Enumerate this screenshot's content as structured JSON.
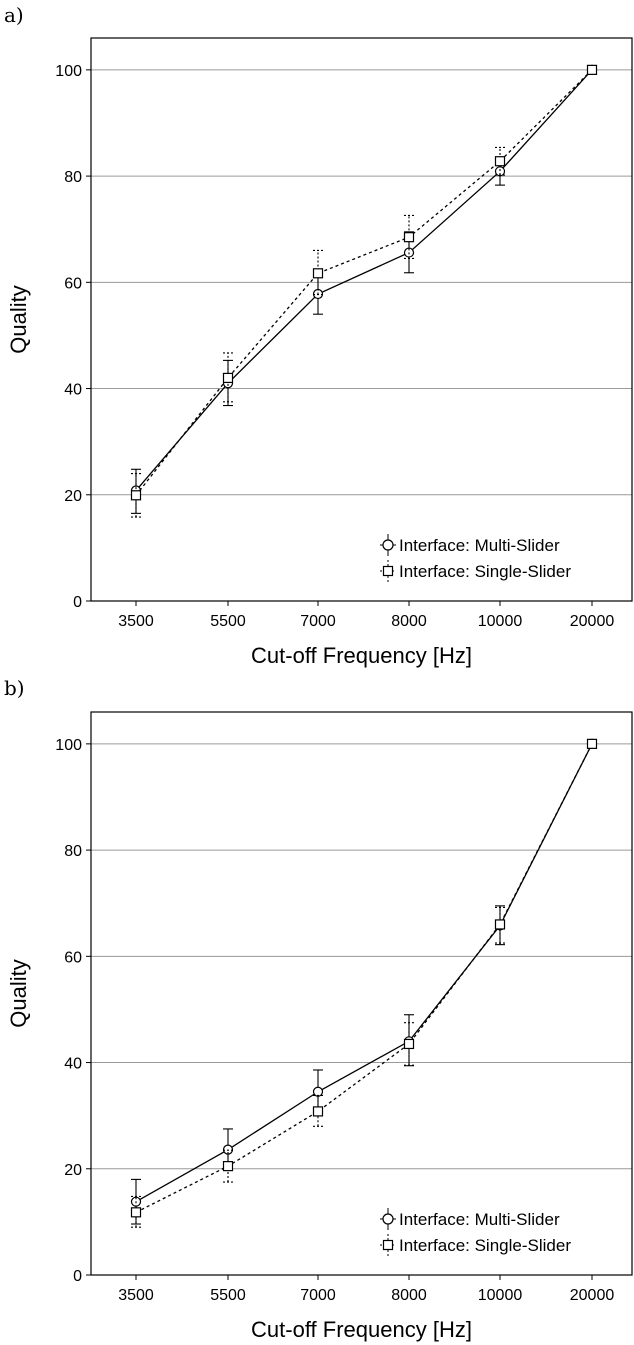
{
  "chart_data": [
    {
      "type": "line",
      "panel_label": "a)",
      "title": "",
      "xlabel": "Cut-off Frequency [Hz]",
      "ylabel": "Quality",
      "categories": [
        "3500",
        "5500",
        "7000",
        "8000",
        "10000",
        "20000"
      ],
      "ylim": [
        0,
        100
      ],
      "yticks": [
        "0",
        "20",
        "40",
        "60",
        "80",
        "100"
      ],
      "grid": "horizontal",
      "legend_position": "bottom-right",
      "series": [
        {
          "name": "Interface: Multi-Slider",
          "marker": "circle",
          "line": "solid",
          "values": [
            20.8,
            41.0,
            57.8,
            65.6,
            80.9,
            100
          ],
          "err_low": [
            16.5,
            36.8,
            54.0,
            61.8,
            78.3,
            100
          ],
          "err_high": [
            24.8,
            45.3,
            61.7,
            69.5,
            83.5,
            100
          ]
        },
        {
          "name": "Interface: Single-Slider",
          "marker": "square",
          "line": "dotted",
          "values": [
            19.9,
            42.0,
            61.7,
            68.5,
            82.8,
            100
          ],
          "err_low": [
            15.8,
            37.5,
            57.7,
            64.5,
            80.2,
            100
          ],
          "err_high": [
            24.0,
            46.7,
            66.0,
            72.6,
            85.4,
            100
          ]
        }
      ]
    },
    {
      "type": "line",
      "panel_label": "b)",
      "title": "",
      "xlabel": "Cut-off Frequency [Hz]",
      "ylabel": "Quality",
      "categories": [
        "3500",
        "5500",
        "7000",
        "8000",
        "10000",
        "20000"
      ],
      "ylim": [
        0,
        100
      ],
      "yticks": [
        "0",
        "20",
        "40",
        "60",
        "80",
        "100"
      ],
      "grid": "horizontal",
      "legend_position": "bottom-right",
      "series": [
        {
          "name": "Interface: Multi-Slider",
          "marker": "circle",
          "line": "solid",
          "values": [
            13.8,
            23.6,
            34.5,
            44.0,
            65.8,
            100
          ],
          "err_low": [
            9.6,
            19.7,
            30.5,
            39.4,
            62.2,
            100
          ],
          "err_high": [
            18.0,
            27.5,
            38.6,
            49.0,
            69.5,
            100
          ]
        },
        {
          "name": "Interface: Single-Slider",
          "marker": "square",
          "line": "dotted",
          "values": [
            11.8,
            20.5,
            30.8,
            43.5,
            66.0,
            100
          ],
          "err_low": [
            9.0,
            17.5,
            28.0,
            39.5,
            62.5,
            100
          ],
          "err_high": [
            14.8,
            23.5,
            33.8,
            47.5,
            69.2,
            100
          ]
        }
      ]
    }
  ]
}
